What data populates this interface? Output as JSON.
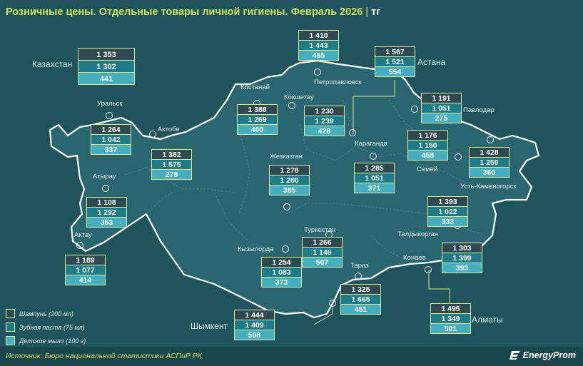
{
  "title": "Розничные цены. Отдельные товары личной гигиены. Февраль 2026",
  "title_separator": "|",
  "unit": "тг",
  "colors": {
    "background": "#1f545d",
    "title": "#cfe25a",
    "shampoo": "#2e4a50",
    "toothpaste": "#1f7b86",
    "baby_soap": "#46afbd",
    "box_border": "#d7e8a0"
  },
  "legend": [
    {
      "label": "Шампунь (200 мл)"
    },
    {
      "label": "Зубная паста (75 мл)"
    },
    {
      "label": "Детское мыло (100 г)"
    }
  ],
  "regions": [
    {
      "key": "kazakhstan",
      "name": "Казахстан",
      "shampoo": "1 353",
      "toothpaste": "1 302",
      "baby_soap": "441"
    },
    {
      "key": "petropavlovsk",
      "name": "Петропавловск",
      "shampoo": "1 410",
      "toothpaste": "1 443",
      "baby_soap": "455"
    },
    {
      "key": "astana",
      "name": "Астана",
      "shampoo": "1 567",
      "toothpaste": "1 521",
      "baby_soap": "554"
    },
    {
      "key": "kostanay",
      "name": "Костанай",
      "shampoo": "1 388",
      "toothpaste": "1 269",
      "baby_soap": "400"
    },
    {
      "key": "kokshetau",
      "name": "Кокшетау",
      "shampoo": "1 230",
      "toothpaste": "1 239",
      "baby_soap": "428"
    },
    {
      "key": "pavlodar",
      "name": "Павлодар",
      "shampoo": "1 191",
      "toothpaste": "1 051",
      "baby_soap": "275"
    },
    {
      "key": "uralsk",
      "name": "Уральск",
      "shampoo": "1 264",
      "toothpaste": "1 042",
      "baby_soap": "337"
    },
    {
      "key": "aktobe",
      "name": "Актобе",
      "shampoo": "1 382",
      "toothpaste": "1 575",
      "baby_soap": "278"
    },
    {
      "key": "semey",
      "name": "Семей",
      "shampoo": "1 176",
      "toothpaste": "1 150",
      "baby_soap": "458"
    },
    {
      "key": "ust-kamenogorsk",
      "name": "Усть-Каменогорск",
      "shampoo": "1 428",
      "toothpaste": "1 259",
      "baby_soap": "360"
    },
    {
      "key": "zhezkazgan",
      "name": "Жезказган",
      "shampoo": "1 278",
      "toothpaste": "1 280",
      "baby_soap": "385"
    },
    {
      "key": "karaganda",
      "name": "Караганда",
      "shampoo": "1 285",
      "toothpaste": "1 051",
      "baby_soap": "371"
    },
    {
      "key": "atyrau",
      "name": "Атырау",
      "shampoo": "1 108",
      "toothpaste": "1 292",
      "baby_soap": "353"
    },
    {
      "key": "taldykorgan",
      "name": "Талдыкорган",
      "shampoo": "1 393",
      "toothpaste": "1 022",
      "baby_soap": "333"
    },
    {
      "key": "aktau",
      "name": "Актау",
      "shampoo": "1 189",
      "toothpaste": "1 077",
      "baby_soap": "414"
    },
    {
      "key": "kyzylorda",
      "name": "Кызылорда",
      "shampoo": "1 254",
      "toothpaste": "1 083",
      "baby_soap": "373"
    },
    {
      "key": "turkestan",
      "name": "Туркестан",
      "shampoo": "1 266",
      "toothpaste": "1 145",
      "baby_soap": "507"
    },
    {
      "key": "konaev",
      "name": "Конаев",
      "shampoo": "1 303",
      "toothpaste": "1 399",
      "baby_soap": "393"
    },
    {
      "key": "taraz",
      "name": "Тараз",
      "shampoo": "1 325",
      "toothpaste": "1 665",
      "baby_soap": "451"
    },
    {
      "key": "almaty",
      "name": "Алматы",
      "shampoo": "1 495",
      "toothpaste": "1 349",
      "baby_soap": "501"
    },
    {
      "key": "shymkent",
      "name": "Шымкент",
      "shampoo": "1 444",
      "toothpaste": "1 409",
      "baby_soap": "508"
    }
  ],
  "source": "Источник: Бюро национальной статистики АСПиР РК",
  "brand": "EnergyProm"
}
